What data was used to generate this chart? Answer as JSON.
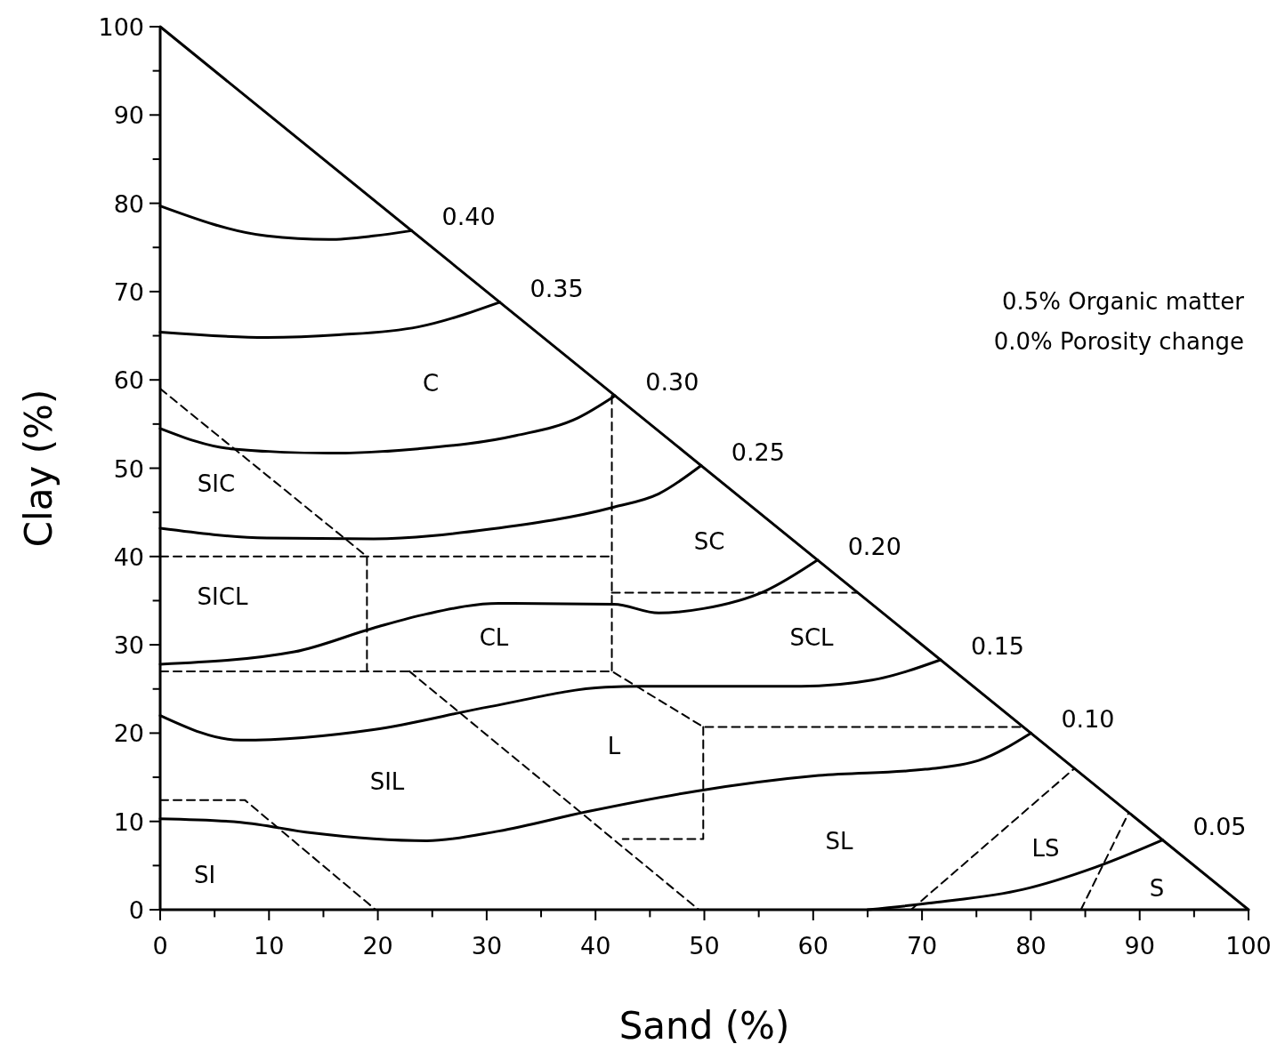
{
  "chart_data": {
    "type": "line",
    "xlabel": "Sand (%)",
    "ylabel": "Clay (%)",
    "xlim": [
      0,
      100
    ],
    "ylim": [
      0,
      100
    ],
    "xticks": [
      0,
      {
        "value": 5,
        "label": null
      },
      10,
      {
        "value": 15,
        "label": null
      },
      20,
      {
        "value": 25,
        "label": null
      },
      30,
      {
        "value": 35,
        "label": null
      },
      40,
      {
        "value": 45,
        "label": null
      },
      50,
      {
        "value": 55,
        "label": null
      },
      60,
      {
        "value": 65,
        "label": null
      },
      70,
      {
        "value": 75,
        "label": null
      },
      80,
      {
        "value": 85,
        "label": null
      },
      90,
      {
        "value": 95,
        "label": null
      },
      100
    ],
    "yticks": [
      0,
      {
        "value": 5,
        "label": null
      },
      10,
      {
        "value": 15,
        "label": null
      },
      20,
      {
        "value": 25,
        "label": null
      },
      30,
      {
        "value": 35,
        "label": null
      },
      40,
      {
        "value": 45,
        "label": null
      },
      50,
      {
        "value": 55,
        "label": null
      },
      60,
      {
        "value": 65,
        "label": null
      },
      70,
      {
        "value": 75,
        "label": null
      },
      80,
      {
        "value": 85,
        "label": null
      },
      90,
      {
        "value": 95,
        "label": null
      },
      100
    ],
    "series": [
      {
        "color": "#000000",
        "line_style": "solid",
        "x": [
          0,
          100
        ],
        "values": [
          100,
          0
        ]
      },
      {
        "name": "0.40",
        "color": "#000000",
        "line_style": "solid",
        "x": [
          0,
          9.8,
          15.5,
          19.6,
          23.1
        ],
        "values": [
          79.7,
          76.3,
          75.9,
          76.3,
          76.9
        ]
      },
      {
        "name": "0.35",
        "color": "#000000",
        "line_style": "solid",
        "x": [
          0,
          9.8,
          16.4,
          23.7,
          31.2
        ],
        "values": [
          65.4,
          64.8,
          65.1,
          66.0,
          68.8
        ]
      },
      {
        "name": "0.30",
        "color": "#000000",
        "line_style": "solid",
        "x": [
          0,
          6.5,
          15.5,
          23.7,
          32.7,
          38.4,
          41.8
        ],
        "values": [
          54.5,
          52.2,
          51.7,
          52.2,
          53.7,
          55.7,
          58.2
        ]
      },
      {
        "name": "0.25",
        "color": "#000000",
        "line_style": "solid",
        "x": [
          0,
          9.8,
          19.6,
          30.3,
          41.7,
          45.8,
          49.7
        ],
        "values": [
          43.2,
          42.1,
          42.0,
          43.1,
          45.6,
          47.1,
          50.3
        ]
      },
      {
        "name": "0.20",
        "color": "#000000",
        "line_style": "solid",
        "x": [
          0,
          12.3,
          19.6,
          24.5,
          31.1,
          41.7,
          45.8,
          49.9,
          55.6,
          60.4
        ],
        "values": [
          27.8,
          29.2,
          31.9,
          33.5,
          34.7,
          34.6,
          33.6,
          34.1,
          36.1,
          39.6
        ]
      },
      {
        "name": "0.15",
        "color": "#000000",
        "line_style": "solid",
        "x": [
          0,
          7.4,
          19.6,
          30.3,
          40.9,
          44.2,
          58.9,
          65.4,
          71.7
        ],
        "values": [
          22.0,
          19.2,
          20.4,
          23.0,
          25.2,
          25.3,
          25.3,
          26.0,
          28.3
        ]
      },
      {
        "name": "0.10",
        "color": "#000000",
        "line_style": "solid",
        "x": [
          0,
          7.4,
          13.9,
          24.5,
          31.1,
          39.2,
          49.1,
          60.5,
          70.3,
          75.2,
          80.0
        ],
        "values": [
          10.3,
          9.9,
          8.7,
          7.8,
          8.9,
          11.1,
          13.4,
          15.2,
          15.9,
          16.9,
          20.0
        ]
      },
      {
        "name": "0.05",
        "color": "#000000",
        "line_style": "solid",
        "x": [
          65.0,
          71.1,
          79.3,
          85.9,
          92.1
        ],
        "values": [
          0,
          0.8,
          2.3,
          4.8,
          7.9
        ]
      },
      {
        "color": "#000000",
        "line_style": "dashed",
        "x": [
          0,
          19,
          19
        ],
        "values": [
          59,
          40,
          27
        ]
      },
      {
        "color": "#000000",
        "line_style": "dashed",
        "x": [
          0,
          41.5
        ],
        "values": [
          40,
          40
        ]
      },
      {
        "color": "#000000",
        "line_style": "dashed",
        "x": [
          41.5,
          41.5
        ],
        "values": [
          58.2,
          27
        ]
      },
      {
        "color": "#000000",
        "line_style": "dashed",
        "x": [
          0,
          41.5,
          49.9,
          79.3
        ],
        "values": [
          27,
          27,
          20.7,
          20.7
        ]
      },
      {
        "color": "#000000",
        "line_style": "dashed",
        "x": [
          22.9,
          49.5
        ],
        "values": [
          27,
          0
        ]
      },
      {
        "color": "#000000",
        "line_style": "dashed",
        "x": [
          49.9,
          49.9,
          42.5
        ],
        "values": [
          20.7,
          8.0,
          8.0
        ]
      },
      {
        "color": "#000000",
        "line_style": "dashed",
        "x": [
          41.5,
          64.1
        ],
        "values": [
          35.9,
          35.9
        ]
      },
      {
        "color": "#000000",
        "line_style": "dashed",
        "x": [
          0,
          7.8,
          19.8
        ],
        "values": [
          12.4,
          12.4,
          0
        ]
      },
      {
        "color": "#000000",
        "line_style": "dashed",
        "x": [
          69,
          84
        ],
        "values": [
          0,
          16
        ]
      },
      {
        "color": "#000000",
        "line_style": "dashed",
        "x": [
          84.6,
          89
        ],
        "values": [
          0,
          11
        ]
      }
    ],
    "annotations": [
      "0.5% Organic matter",
      "0.0% Porosity change",
      "C",
      "SIC",
      "SICL",
      "CL",
      "SC",
      "SCL",
      "L",
      "SIL",
      "SI",
      "SL",
      "LS",
      "S"
    ]
  }
}
